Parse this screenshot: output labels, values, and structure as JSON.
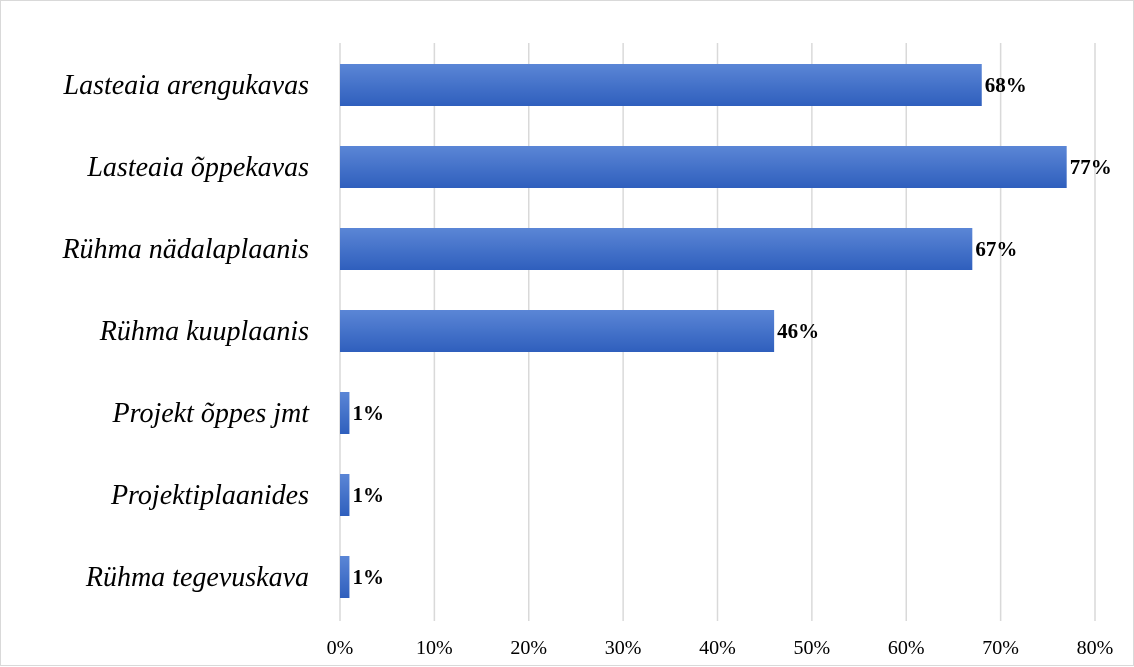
{
  "chart_data": {
    "type": "bar",
    "orientation": "horizontal",
    "categories": [
      "Lasteaia arengukavas",
      "Lasteaia õppekavas",
      "Rühma nädalaplaanis",
      "Rühma kuuplaanis",
      "Projekt õppes jmt",
      "Projektiplaanides",
      "Rühma tegevuskava"
    ],
    "values": [
      68,
      77,
      67,
      46,
      1,
      1,
      1
    ],
    "data_labels": [
      "68%",
      "77%",
      "67%",
      "46%",
      "1%",
      "1%",
      "1%"
    ],
    "xlim": [
      0,
      80
    ],
    "x_ticks": [
      0,
      10,
      20,
      30,
      40,
      50,
      60,
      70,
      80
    ],
    "x_tick_labels": [
      "0%",
      "10%",
      "20%",
      "30%",
      "40%",
      "50%",
      "60%",
      "70%",
      "80%"
    ],
    "grid": true,
    "legend": "none",
    "colors": {
      "bar_top": "#5b86d6",
      "bar_bottom": "#2f5fbd",
      "grid": "#d9d9d9",
      "text": "#000000"
    }
  }
}
